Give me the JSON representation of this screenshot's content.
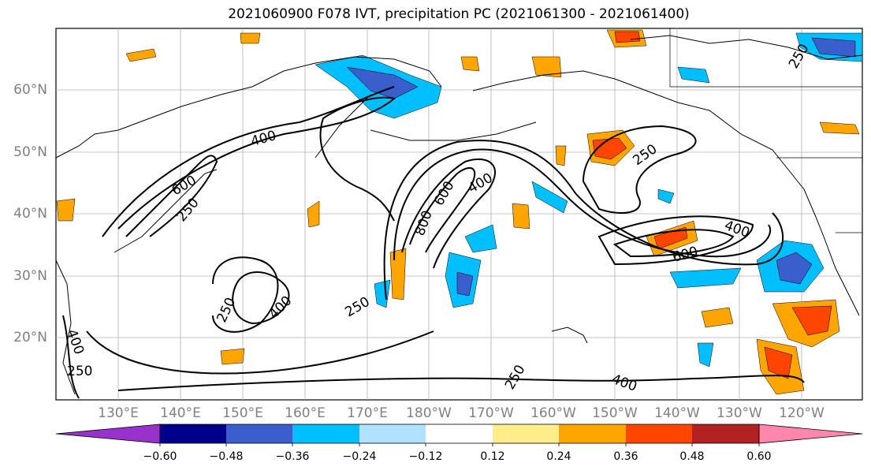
{
  "title": "2021060900 F078 IVT, precipitation PC (2021061300 - 2021061400)",
  "lat_labels": [
    "60°N",
    "50°N",
    "40°N",
    "30°N",
    "20°N"
  ],
  "lon_labels": [
    "130°E",
    "140°E",
    "150°E",
    "160°E",
    "170°E",
    "180°W",
    "170°W",
    "160°W",
    "150°W",
    "140°W",
    "130°W",
    "120°W"
  ],
  "ivt_contour_labels": [
    "400",
    "600",
    "250",
    "800",
    "600",
    "400",
    "250",
    "400",
    "600",
    "250",
    "400",
    "250",
    "400",
    "250",
    "250",
    "400",
    "250",
    "400",
    "250"
  ],
  "colorbar": {
    "ticks": [
      "−0.60",
      "−0.48",
      "−0.36",
      "−0.24",
      "−0.12",
      "0.12",
      "0.24",
      "0.36",
      "0.48",
      "0.60"
    ],
    "colors": [
      "#9932cc",
      "#00008b",
      "#3a5fcd",
      "#00bfff",
      "#b0e2ff",
      "#ffffff",
      "#ffec8b",
      "#ffa500",
      "#ff4500",
      "#b22222",
      "#ff87ad",
      "#ff87ad"
    ]
  },
  "colors": {
    "lat_lon_label": "#808080",
    "contour": "#000000",
    "gridline": "#b0b0b0"
  }
}
